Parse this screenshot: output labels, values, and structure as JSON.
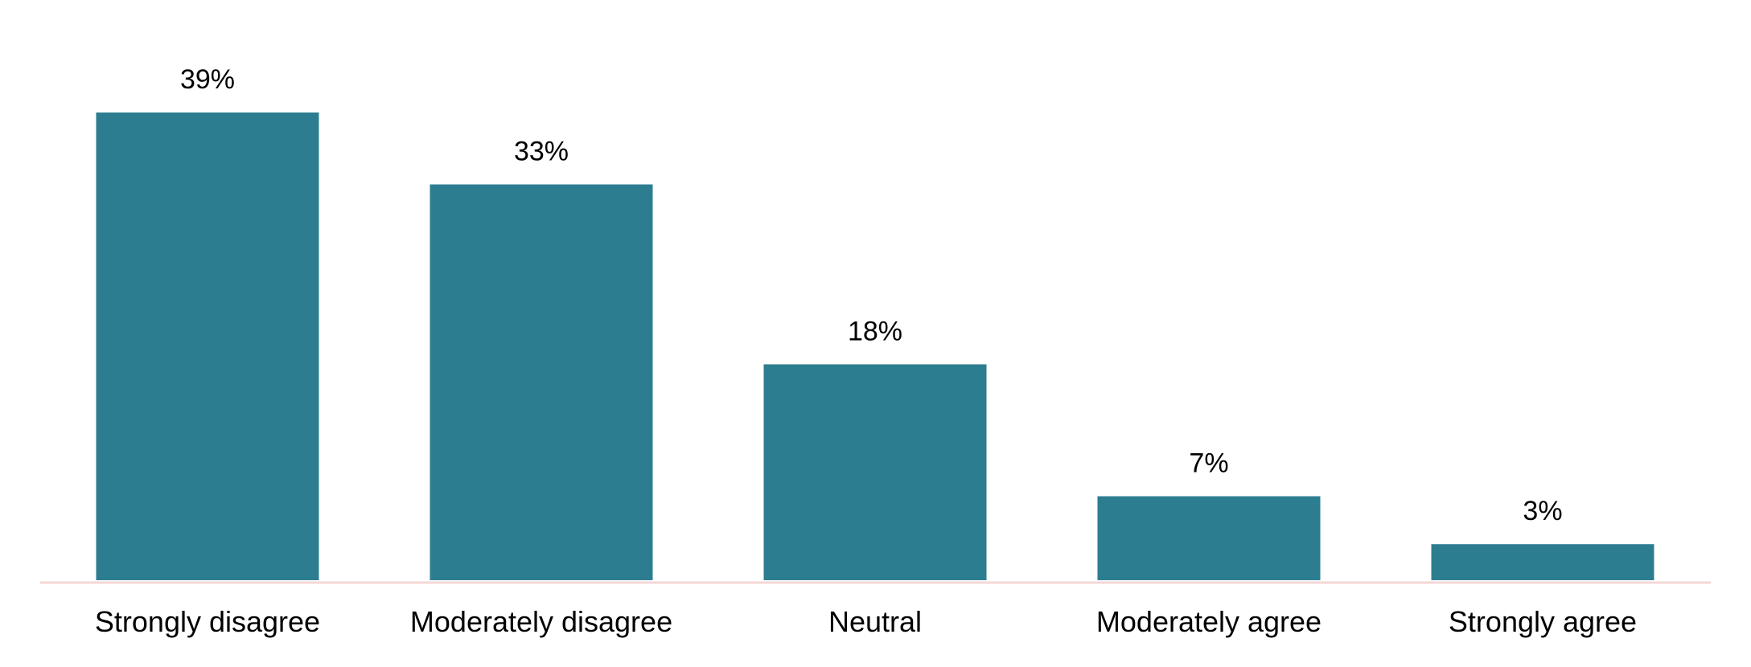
{
  "chart_data": {
    "type": "bar",
    "categories": [
      "Strongly disagree",
      "Moderately disagree",
      "Neutral",
      "Moderately agree",
      "Strongly agree"
    ],
    "values": [
      39,
      33,
      18,
      7,
      3
    ],
    "value_labels": [
      "39%",
      "33%",
      "18%",
      "7%",
      "3%"
    ],
    "ylim": [
      0,
      39
    ],
    "grid": false,
    "legend": "none",
    "colors": {
      "bar": "#2d7d91",
      "axis": "#f5d6d6",
      "text": "#000000"
    }
  }
}
